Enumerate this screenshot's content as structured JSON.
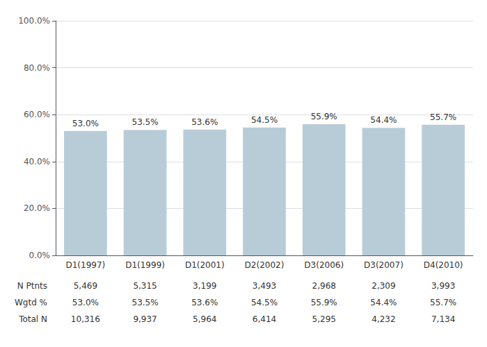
{
  "chart_data": {
    "type": "bar",
    "categories": [
      "D1(1997)",
      "D1(1999)",
      "D1(2001)",
      "D2(2002)",
      "D3(2006)",
      "D3(2007)",
      "D4(2010)"
    ],
    "values": [
      53.0,
      53.5,
      53.6,
      54.5,
      55.9,
      54.4,
      55.7
    ],
    "value_labels": [
      "53.0%",
      "53.5%",
      "53.6%",
      "54.5%",
      "55.9%",
      "54.4%",
      "55.7%"
    ],
    "data_labels": true,
    "color": "#b8ccd8",
    "ylim": [
      0,
      100
    ],
    "yticks": [
      {
        "value": 0,
        "label": "0.0%"
      },
      {
        "value": 20,
        "label": "20.0%"
      },
      {
        "value": 40,
        "label": "40.0%"
      },
      {
        "value": 60,
        "label": "60.0%"
      },
      {
        "value": 80,
        "label": "80.0%"
      },
      {
        "value": 100,
        "label": "100.0%"
      }
    ],
    "grid": true,
    "table": [
      {
        "label": "N Ptnts",
        "cells": [
          "5,469",
          "5,315",
          "3,199",
          "3,493",
          "2,968",
          "2,309",
          "3,993"
        ]
      },
      {
        "label": "Wgtd %",
        "cells": [
          "53.0%",
          "53.5%",
          "53.6%",
          "54.5%",
          "55.9%",
          "54.4%",
          "55.7%"
        ]
      },
      {
        "label": "Total N",
        "cells": [
          "10,316",
          "9,937",
          "5,964",
          "6,414",
          "5,295",
          "4,232",
          "7,134"
        ]
      }
    ]
  }
}
